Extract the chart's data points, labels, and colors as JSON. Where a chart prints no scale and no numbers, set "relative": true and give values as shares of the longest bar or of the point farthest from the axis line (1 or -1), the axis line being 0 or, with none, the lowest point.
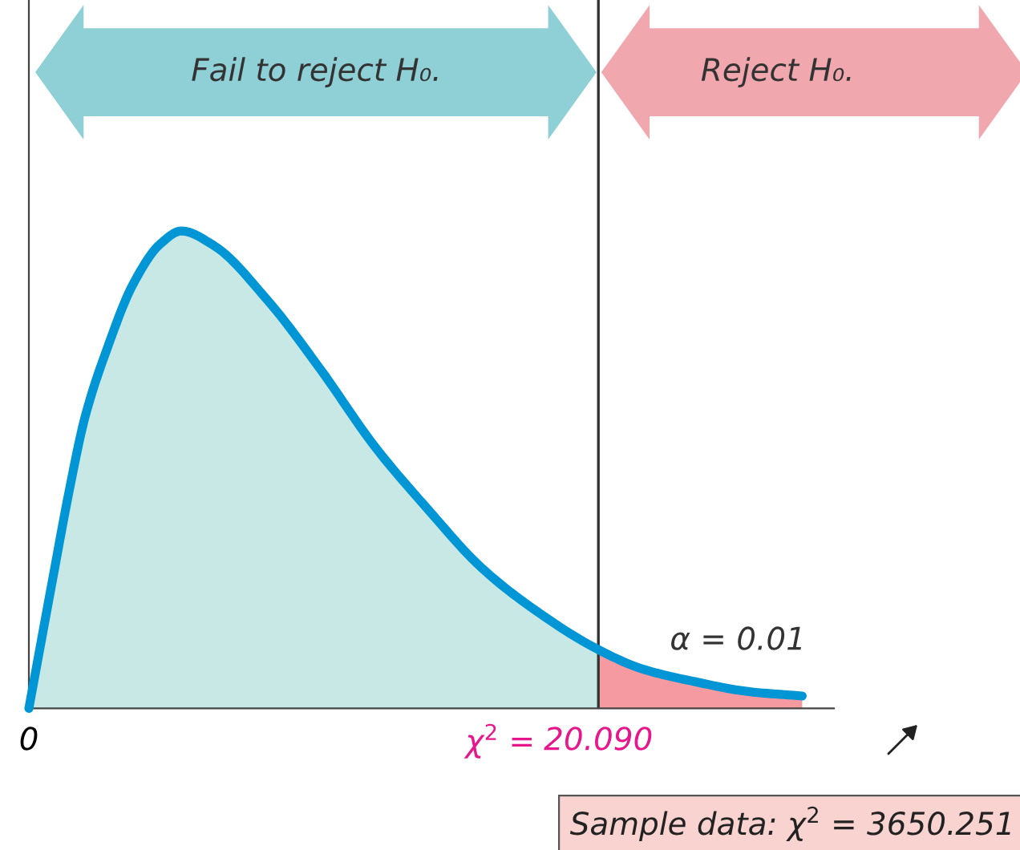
{
  "chart_data": {
    "type": "area",
    "relative": true,
    "xlim": [
      0,
      28.4
    ],
    "xticks": [
      0,
      {
        "value": 20.09,
        "label": "20.090"
      }
    ],
    "series": [
      {
        "color": "#c8e8e6",
        "x": [
          0,
          0.85,
          1.41,
          1.98,
          2.77,
          3.68,
          4.64,
          5.38,
          6.51,
          8.43,
          10.3,
          12.17,
          14.09,
          15.96,
          17.83,
          20.09
        ],
        "values": [
          0,
          0.274,
          0.452,
          0.61,
          0.755,
          0.889,
          0.973,
          1.0,
          0.97,
          0.854,
          0.709,
          0.551,
          0.416,
          0.295,
          0.207,
          0.123
        ]
      },
      {
        "color": "#f59aa0",
        "x": [
          20.09,
          21.62,
          23.49,
          25.41,
          27.28
        ],
        "values": [
          0.123,
          0.083,
          0.056,
          0.035,
          0.026
        ]
      },
      {
        "type": "line",
        "color": "#0096d6",
        "x": [
          0,
          0.85,
          1.41,
          1.98,
          2.77,
          3.68,
          4.64,
          5.38,
          6.51,
          8.43,
          10.3,
          12.17,
          14.09,
          15.96,
          17.83,
          20.09,
          21.62,
          23.49,
          25.41,
          27.28
        ],
        "values": [
          0,
          0.274,
          0.452,
          0.61,
          0.755,
          0.889,
          0.973,
          1.0,
          0.97,
          0.854,
          0.709,
          0.551,
          0.416,
          0.295,
          0.207,
          0.123,
          0.083,
          0.056,
          0.035,
          0.026
        ]
      }
    ],
    "ref_lines": [
      {
        "axis": "x",
        "value": 20.09,
        "color": "#333333"
      }
    ],
    "annotations": [
      "Fail to reject H₀.",
      "Reject H₀.",
      "α = 0.01",
      "Sample data: χ$^{2}$ = 3650.251",
      "χ$^{2}$ ="
    ],
    "grid": false
  }
}
